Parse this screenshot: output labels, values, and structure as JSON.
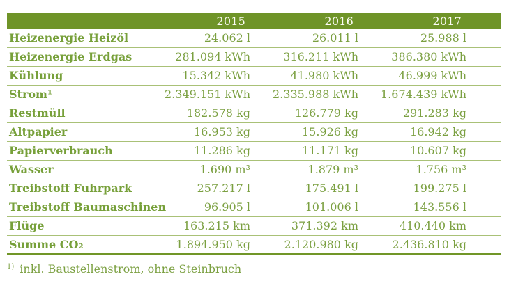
{
  "colors": {
    "header_background": "#6f9428",
    "header_text": "#ffffff",
    "table_text": "#7ba041",
    "row_divider": "#a9c177",
    "bottom_border": "#719628",
    "page_background": "#ffffff"
  },
  "chart_data": {
    "type": "table",
    "title": "",
    "columns": [
      "",
      "2015",
      "2016",
      "2017"
    ],
    "rows": [
      {
        "label": "Heizenergie Heizöl",
        "unit": "l",
        "values": [
          24062,
          26011,
          25988
        ],
        "display": [
          "24.062 l",
          "26.011 l",
          "25.988 l"
        ]
      },
      {
        "label": "Heizenergie Erdgas",
        "unit": "kWh",
        "values": [
          281094,
          316211,
          386380
        ],
        "display": [
          "281.094 kWh",
          "316.211 kWh",
          "386.380 kWh"
        ]
      },
      {
        "label": "Kühlung",
        "unit": "kWh",
        "values": [
          15342,
          41980,
          46999
        ],
        "display": [
          "15.342 kWh",
          "41.980 kWh",
          "46.999 kWh"
        ]
      },
      {
        "label": "Strom¹",
        "unit": "kWh",
        "values": [
          2349151,
          2335988,
          1674439
        ],
        "display": [
          "2.349.151 kWh",
          "2.335.988 kWh",
          "1.674.439 kWh"
        ]
      },
      {
        "label": "Restmüll",
        "unit": "kg",
        "values": [
          182578,
          126779,
          291283
        ],
        "display": [
          "182.578 kg",
          "126.779 kg",
          "291.283 kg"
        ]
      },
      {
        "label": "Altpapier",
        "unit": "kg",
        "values": [
          16953,
          15926,
          16942
        ],
        "display": [
          "16.953 kg",
          "15.926 kg",
          "16.942 kg"
        ]
      },
      {
        "label": "Papierverbrauch",
        "unit": "kg",
        "values": [
          11286,
          11171,
          10607
        ],
        "display": [
          "11.286 kg",
          "11.171 kg",
          "10.607 kg"
        ]
      },
      {
        "label": "Wasser",
        "unit": "m³",
        "values": [
          1690,
          1879,
          1756
        ],
        "display": [
          "1.690 m³",
          "1.879 m³",
          "1.756 m³"
        ]
      },
      {
        "label": "Treibstoff Fuhrpark",
        "unit": "l",
        "values": [
          257217,
          175491,
          199275
        ],
        "display": [
          "257.217 l",
          "175.491 l",
          "199.275 l"
        ]
      },
      {
        "label": "Treibstoff Baumaschinen",
        "unit": "l",
        "values": [
          96905,
          101006,
          143556
        ],
        "display": [
          "96.905 l",
          "101.006 l",
          "143.556 l"
        ]
      },
      {
        "label": "Flüge",
        "unit": "km",
        "values": [
          163215,
          371392,
          410440
        ],
        "display": [
          "163.215 km",
          "371.392 km",
          "410.440 km"
        ]
      },
      {
        "label": "Summe CO₂",
        "unit": "kg",
        "values": [
          1894950,
          2120980,
          2436810
        ],
        "display": [
          "1.894.950 kg",
          "2.120.980 kg",
          "2.436.810 kg"
        ]
      }
    ],
    "footnote": {
      "marker": "1)",
      "text": "inkl. Baustellenstrom, ohne Steinbruch"
    }
  }
}
